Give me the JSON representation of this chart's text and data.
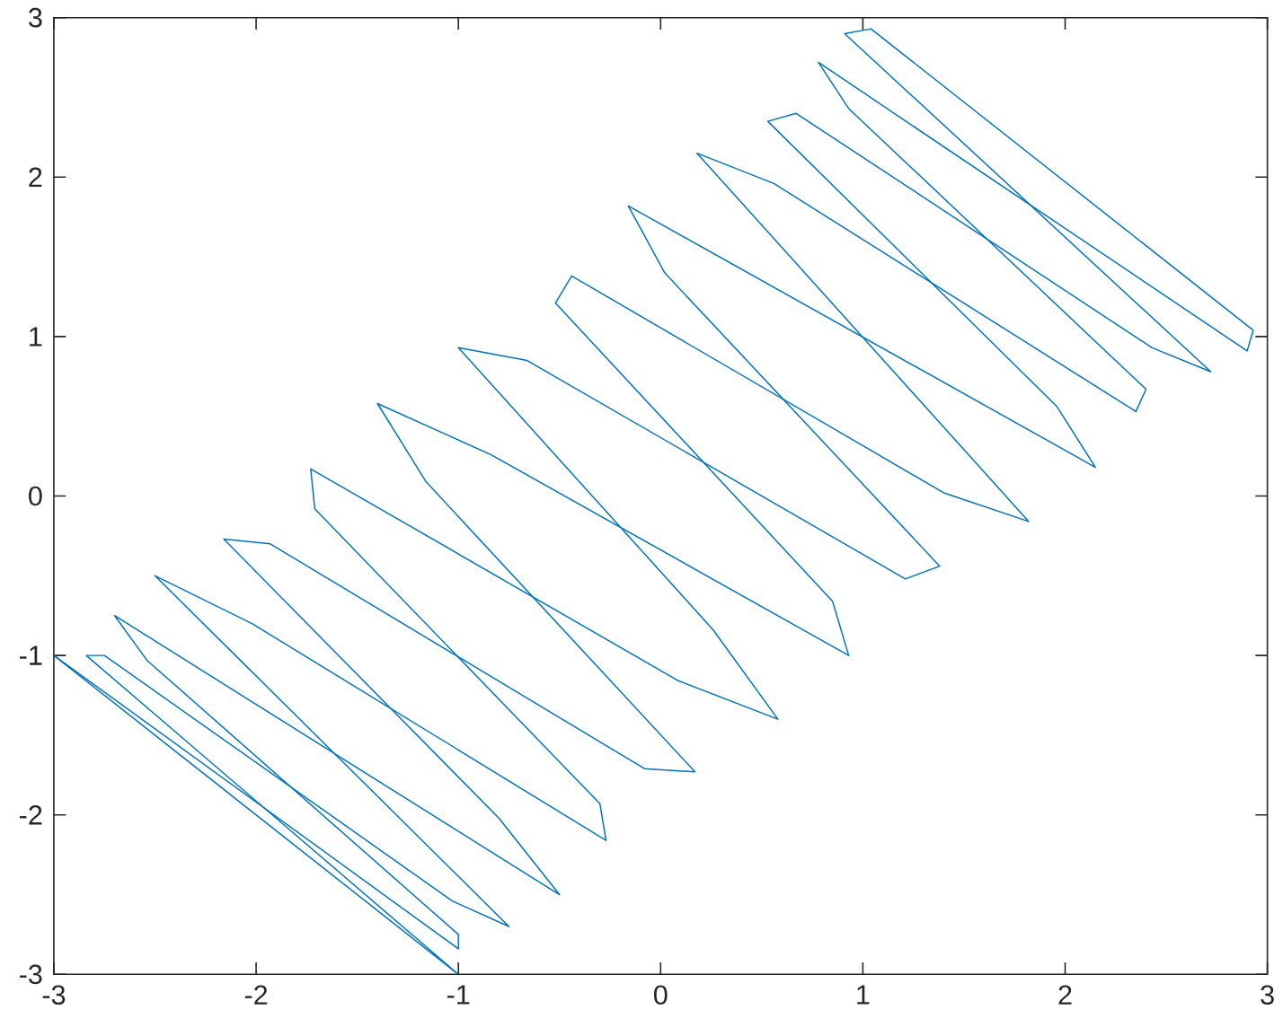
{
  "chart_data": {
    "type": "line",
    "series": [
      {
        "color": "#0072bd",
        "x": [
          -3,
          -1,
          -1,
          -2.54,
          -2.7,
          -0.5,
          -0.8,
          -2.16,
          -1.93,
          -0.08,
          0.17,
          -1.16,
          -1.4,
          -0.84,
          0.93,
          0.85,
          -0.52,
          -0.44,
          1.4,
          1.82,
          0.18,
          0.56,
          2.35,
          2.4,
          0.93,
          0.78,
          2.9,
          2.93
        ],
        "values": [
          -1,
          -2.84,
          -2.75,
          -1.03,
          -0.75,
          -2.5,
          -2.02,
          -0.27,
          -0.3,
          -1.71,
          -1.73,
          0.09,
          0.58,
          0.26,
          -1.0,
          -0.66,
          1.21,
          1.38,
          0.02,
          -0.16,
          2.15,
          1.96,
          0.53,
          0.67,
          2.43,
          2.72,
          0.91,
          1.04
        ]
      },
      {
        "color": "#0072bd",
        "x": [
          2.93,
          1.04,
          0.91,
          2.72,
          2.43,
          0.67,
          0.53,
          1.96,
          2.15,
          -0.16,
          0.02,
          1.38,
          1.21,
          -0.66,
          -1.0,
          0.26,
          0.58,
          0.09,
          -1.73,
          -1.71,
          -0.3,
          -0.27,
          -2.02,
          -2.5,
          -0.75,
          -1.03,
          -2.75,
          -2.84,
          -1,
          -3
        ],
        "values": [
          1.04,
          2.93,
          2.9,
          0.78,
          0.93,
          2.4,
          2.35,
          0.56,
          0.18,
          1.82,
          1.4,
          -0.44,
          -0.52,
          0.85,
          0.93,
          -0.84,
          -1.4,
          -1.16,
          0.17,
          -0.08,
          -1.93,
          -2.16,
          -0.8,
          -0.5,
          -2.7,
          -2.54,
          -1,
          -1,
          -3,
          -1
        ]
      }
    ],
    "marker": "none",
    "line_style": "solid",
    "xlim": [
      -3,
      3
    ],
    "ylim": [
      -3,
      3
    ],
    "xticks": [
      -3,
      -2,
      -1,
      0,
      1,
      2,
      3
    ],
    "yticks": [
      -3,
      -2,
      -1,
      0,
      1,
      2,
      3
    ]
  }
}
